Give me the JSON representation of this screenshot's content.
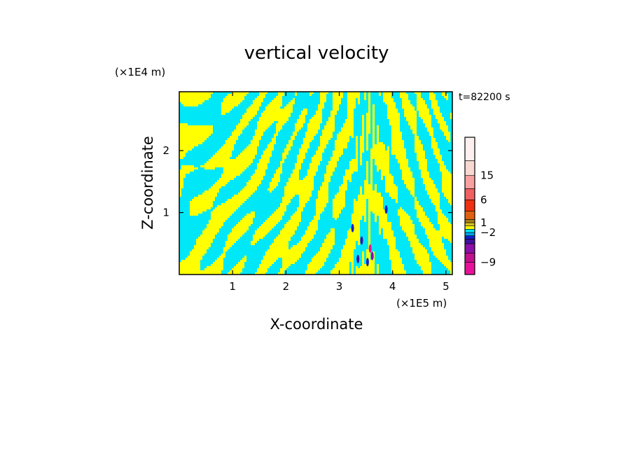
{
  "chart_data": {
    "type": "heatmap",
    "title": "vertical velocity",
    "xlabel": "X-coordinate",
    "ylabel": "Z-coordinate",
    "x_scale_label": "(×1E5 m)",
    "y_scale_label": "(×1E4 m)",
    "time_label": "t=82200 s",
    "xlim": [
      0,
      5.12
    ],
    "ylim": [
      0,
      2.95
    ],
    "x_ticks": [
      1,
      2,
      3,
      4,
      5
    ],
    "y_ticks": [
      1,
      2
    ],
    "x_tick_labels": [
      "1",
      "2",
      "3",
      "4",
      "5"
    ],
    "y_tick_labels": [
      "1",
      "2"
    ],
    "colorbar": {
      "tick_labels": [
        "15",
        "6",
        "1",
        "−2",
        "−9"
      ],
      "levels": [
        -12,
        -9,
        -6,
        -4,
        -2,
        -1,
        -0.5,
        0,
        0.5,
        1,
        2,
        4,
        6,
        9,
        12,
        15,
        20
      ],
      "colors": [
        "#e8129a",
        "#c0108c",
        "#8a10a8",
        "#4010a0",
        "#1020c8",
        "#00a0e8",
        "#00e8f8",
        "#ffff00",
        "#d8c020",
        "#a88018",
        "#e06010",
        "#f03010",
        "#f06060",
        "#f8a0a0",
        "#f8d8d0",
        "#fff0f0"
      ]
    },
    "dominant_classes": [
      {
        "name": "positive",
        "color": "#ffff00"
      },
      {
        "name": "negative",
        "color": "#00e8f8"
      }
    ],
    "extreme_spots": [
      {
        "x": 3.25,
        "z": 0.75,
        "color": "#1020c8"
      },
      {
        "x": 3.42,
        "z": 0.55,
        "color": "#4010a0"
      },
      {
        "x": 3.58,
        "z": 0.42,
        "color": "#e8129a"
      },
      {
        "x": 3.62,
        "z": 0.3,
        "color": "#8a10a8"
      },
      {
        "x": 3.53,
        "z": 0.2,
        "color": "#1020c8"
      },
      {
        "x": 3.88,
        "z": 1.05,
        "color": "#1020c8"
      },
      {
        "x": 3.35,
        "z": 0.25,
        "color": "#4010a0"
      }
    ]
  }
}
